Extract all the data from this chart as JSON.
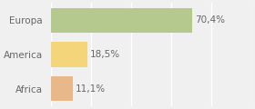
{
  "categories": [
    "Europa",
    "America",
    "Africa"
  ],
  "values": [
    70.4,
    18.5,
    11.1
  ],
  "bar_colors": [
    "#b5c98e",
    "#f5d57a",
    "#e8b88a"
  ],
  "labels": [
    "70,4%",
    "18,5%",
    "11,1%"
  ],
  "xlim": [
    0,
    100
  ],
  "background_color": "#f0f0f0",
  "bar_height": 0.72,
  "label_fontsize": 7.5,
  "tick_fontsize": 7.5,
  "grid_color": "#ffffff",
  "text_color": "#666666"
}
